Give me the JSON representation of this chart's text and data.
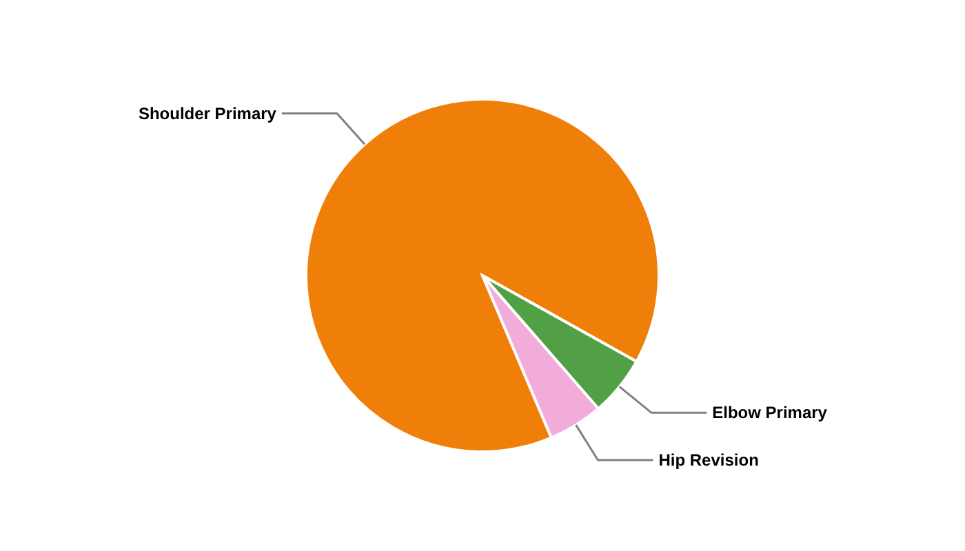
{
  "chart_data": {
    "type": "pie",
    "categories": [
      "Shoulder Primary",
      "Elbow Primary",
      "Hip Revision"
    ],
    "values": [
      89.5,
      5.5,
      5
    ],
    "colors": [
      "#f07f09",
      "#52a045",
      "#f2acd9"
    ]
  }
}
